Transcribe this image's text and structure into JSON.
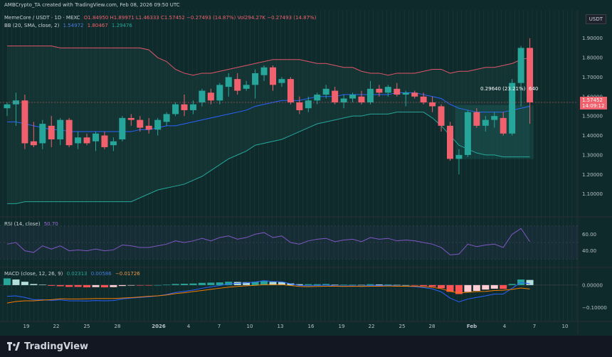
{
  "header": {
    "watermark": "AMBCrypto_TA created with TradingView.com, Feb 08, 2026 09:50 UTC",
    "symbol": "MemeCore / USDT · 1D · MEXC",
    "ohlc": "O1.84950 H1.89971 L1.46333 C1.57452 −0.27493 (14.87%) Vol294.27K −0.27493 (14.87%)",
    "bb_label": "BB (20, SMA, close, 2)",
    "bb_values": [
      "1.54972",
      "1.80467",
      "1.29476"
    ],
    "rsi_label": "RSI (14, close)",
    "rsi_value": "50.70",
    "macd_label": "MACD (close, 12, 26, 9)",
    "macd_values": [
      "0.02313",
      "0.00586",
      "−0.01726"
    ]
  },
  "currency_tag": "USDT",
  "price_tag": {
    "price": "1.57452",
    "countdown": "14:09:12"
  },
  "measure_label": "0.29640 (23.21%)",
  "measure_suffix": "640",
  "price_axis": [
    "1.90000",
    "1.80000",
    "1.70000",
    "1.60000",
    "1.50000",
    "1.40000",
    "1.30000",
    "1.20000",
    "1.10000"
  ],
  "rsi_axis": [
    "60.00",
    "40.00"
  ],
  "macd_axis": [
    "0.00000",
    "−0.10000"
  ],
  "time_axis": [
    "19",
    "22",
    "25",
    "28",
    "2026",
    "4",
    "7",
    "10",
    "13",
    "16",
    "19",
    "22",
    "25",
    "28",
    "Feb",
    "4",
    "7",
    "10"
  ],
  "footer_brand": "TradingView",
  "colors": {
    "up": "#26a69a",
    "down": "#f0616d",
    "bb_upper": "#e0556a",
    "bb_basis": "#2962ff",
    "bb_lower": "#26a69a",
    "rsi": "#7e57c2",
    "macd": "#2962ff",
    "signal": "#f57c00"
  },
  "candles": [
    [
      1.54,
      1.57,
      1.5,
      1.56
    ],
    [
      1.56,
      1.62,
      1.45,
      1.58
    ],
    [
      1.58,
      1.61,
      1.33,
      1.36
    ],
    [
      1.37,
      1.47,
      1.34,
      1.35
    ],
    [
      1.36,
      1.48,
      1.33,
      1.46
    ],
    [
      1.45,
      1.5,
      1.34,
      1.38
    ],
    [
      1.38,
      1.49,
      1.35,
      1.48
    ],
    [
      1.48,
      1.49,
      1.34,
      1.35
    ],
    [
      1.36,
      1.42,
      1.33,
      1.39
    ],
    [
      1.39,
      1.41,
      1.35,
      1.36
    ],
    [
      1.37,
      1.42,
      1.32,
      1.41
    ],
    [
      1.4,
      1.42,
      1.33,
      1.34
    ],
    [
      1.35,
      1.39,
      1.32,
      1.37
    ],
    [
      1.38,
      1.5,
      1.37,
      1.49
    ],
    [
      1.49,
      1.51,
      1.45,
      1.48
    ],
    [
      1.48,
      1.5,
      1.42,
      1.44
    ],
    [
      1.45,
      1.49,
      1.41,
      1.43
    ],
    [
      1.43,
      1.49,
      1.4,
      1.48
    ],
    [
      1.47,
      1.52,
      1.45,
      1.51
    ],
    [
      1.51,
      1.57,
      1.5,
      1.56
    ],
    [
      1.56,
      1.61,
      1.5,
      1.53
    ],
    [
      1.53,
      1.58,
      1.51,
      1.56
    ],
    [
      1.57,
      1.64,
      1.55,
      1.63
    ],
    [
      1.62,
      1.64,
      1.56,
      1.58
    ],
    [
      1.58,
      1.67,
      1.56,
      1.66
    ],
    [
      1.65,
      1.72,
      1.6,
      1.7
    ],
    [
      1.69,
      1.72,
      1.61,
      1.63
    ],
    [
      1.64,
      1.68,
      1.63,
      1.66
    ],
    [
      1.66,
      1.74,
      1.59,
      1.72
    ],
    [
      1.71,
      1.76,
      1.68,
      1.75
    ],
    [
      1.75,
      1.76,
      1.63,
      1.66
    ],
    [
      1.67,
      1.7,
      1.65,
      1.69
    ],
    [
      1.69,
      1.7,
      1.56,
      1.57
    ],
    [
      1.57,
      1.6,
      1.51,
      1.53
    ],
    [
      1.54,
      1.6,
      1.52,
      1.58
    ],
    [
      1.58,
      1.62,
      1.56,
      1.61
    ],
    [
      1.61,
      1.66,
      1.59,
      1.64
    ],
    [
      1.63,
      1.65,
      1.56,
      1.57
    ],
    [
      1.57,
      1.61,
      1.54,
      1.59
    ],
    [
      1.59,
      1.62,
      1.57,
      1.61
    ],
    [
      1.6,
      1.63,
      1.56,
      1.57
    ],
    [
      1.57,
      1.68,
      1.56,
      1.64
    ],
    [
      1.64,
      1.66,
      1.6,
      1.62
    ],
    [
      1.62,
      1.66,
      1.6,
      1.65
    ],
    [
      1.64,
      1.67,
      1.6,
      1.61
    ],
    [
      1.61,
      1.63,
      1.55,
      1.62
    ],
    [
      1.62,
      1.63,
      1.59,
      1.6
    ],
    [
      1.6,
      1.62,
      1.56,
      1.57
    ],
    [
      1.57,
      1.6,
      1.52,
      1.55
    ],
    [
      1.55,
      1.56,
      1.42,
      1.45
    ],
    [
      1.45,
      1.47,
      1.27,
      1.28
    ],
    [
      1.28,
      1.33,
      1.2,
      1.3
    ],
    [
      1.3,
      1.53,
      1.29,
      1.52
    ],
    [
      1.52,
      1.54,
      1.44,
      1.45
    ],
    [
      1.45,
      1.5,
      1.42,
      1.48
    ],
    [
      1.48,
      1.52,
      1.44,
      1.5
    ],
    [
      1.49,
      1.52,
      1.4,
      1.41
    ],
    [
      1.41,
      1.69,
      1.4,
      1.67
    ],
    [
      1.67,
      1.86,
      1.55,
      1.85
    ],
    [
      1.85,
      1.9,
      1.46,
      1.57
    ]
  ],
  "rsi": [
    48,
    50,
    40,
    38,
    46,
    42,
    46,
    40,
    41,
    40,
    42,
    40,
    41,
    47,
    46,
    44,
    44,
    46,
    48,
    52,
    50,
    52,
    55,
    52,
    56,
    58,
    54,
    56,
    60,
    62,
    56,
    58,
    50,
    48,
    52,
    54,
    55,
    51,
    53,
    54,
    51,
    56,
    54,
    55,
    52,
    53,
    52,
    50,
    48,
    44,
    35,
    36,
    48,
    45,
    47,
    48,
    44,
    60,
    67,
    51
  ],
  "macd_hist": [
    0.03,
    0.025,
    0.015,
    0.005,
    0.002,
    -0.003,
    -0.005,
    -0.008,
    -0.008,
    -0.01,
    -0.009,
    -0.01,
    -0.009,
    -0.004,
    -0.002,
    -0.002,
    -0.002,
    0.0,
    0.002,
    0.005,
    0.006,
    0.007,
    0.01,
    0.011,
    0.012,
    0.015,
    0.014,
    0.013,
    0.015,
    0.018,
    0.014,
    0.013,
    0.008,
    0.004,
    0.004,
    0.004,
    0.005,
    0.002,
    0.002,
    0.002,
    0.001,
    0.004,
    0.003,
    0.003,
    0.001,
    0.0,
    -0.002,
    -0.004,
    -0.007,
    -0.014,
    -0.03,
    -0.04,
    -0.03,
    -0.026,
    -0.02,
    -0.016,
    -0.017,
    0.005,
    0.025,
    0.023
  ],
  "macd_line": [
    -0.05,
    -0.048,
    -0.055,
    -0.065,
    -0.065,
    -0.068,
    -0.066,
    -0.07,
    -0.07,
    -0.071,
    -0.069,
    -0.07,
    -0.069,
    -0.062,
    -0.058,
    -0.055,
    -0.052,
    -0.048,
    -0.042,
    -0.033,
    -0.028,
    -0.022,
    -0.014,
    -0.008,
    -0.002,
    0.006,
    0.008,
    0.01,
    0.014,
    0.02,
    0.016,
    0.015,
    0.006,
    -0.002,
    -0.003,
    -0.002,
    0.0,
    -0.003,
    -0.004,
    -0.003,
    -0.005,
    -0.001,
    -0.002,
    -0.001,
    -0.004,
    -0.005,
    -0.007,
    -0.011,
    -0.017,
    -0.03,
    -0.058,
    -0.075,
    -0.062,
    -0.055,
    -0.048,
    -0.04,
    -0.04,
    -0.014,
    0.012,
    0.0058
  ],
  "signal_line": [
    -0.08,
    -0.073,
    -0.07,
    -0.07,
    -0.067,
    -0.065,
    -0.061,
    -0.062,
    -0.062,
    -0.061,
    -0.06,
    -0.06,
    -0.06,
    -0.058,
    -0.056,
    -0.053,
    -0.05,
    -0.048,
    -0.044,
    -0.038,
    -0.034,
    -0.029,
    -0.024,
    -0.019,
    -0.014,
    -0.009,
    -0.006,
    -0.003,
    -0.001,
    0.002,
    0.002,
    0.002,
    -0.002,
    -0.006,
    -0.007,
    -0.006,
    -0.005,
    -0.005,
    -0.006,
    -0.005,
    -0.006,
    -0.005,
    -0.005,
    -0.004,
    -0.005,
    -0.005,
    -0.005,
    -0.007,
    -0.01,
    -0.016,
    -0.028,
    -0.035,
    -0.032,
    -0.029,
    -0.028,
    -0.024,
    -0.023,
    -0.019,
    -0.013,
    -0.0173
  ],
  "bb_upper": [
    1.86,
    1.86,
    1.86,
    1.86,
    1.86,
    1.86,
    1.85,
    1.85,
    1.85,
    1.85,
    1.85,
    1.85,
    1.85,
    1.85,
    1.85,
    1.85,
    1.84,
    1.8,
    1.78,
    1.74,
    1.72,
    1.71,
    1.72,
    1.72,
    1.73,
    1.74,
    1.75,
    1.76,
    1.77,
    1.78,
    1.79,
    1.79,
    1.79,
    1.79,
    1.78,
    1.77,
    1.77,
    1.76,
    1.75,
    1.75,
    1.73,
    1.72,
    1.72,
    1.71,
    1.72,
    1.72,
    1.72,
    1.73,
    1.74,
    1.74,
    1.72,
    1.73,
    1.73,
    1.74,
    1.75,
    1.75,
    1.76,
    1.77,
    1.79,
    1.8
  ],
  "bb_basis": [
    1.47,
    1.47,
    1.46,
    1.45,
    1.44,
    1.43,
    1.43,
    1.42,
    1.42,
    1.42,
    1.42,
    1.42,
    1.42,
    1.42,
    1.42,
    1.43,
    1.43,
    1.44,
    1.45,
    1.45,
    1.46,
    1.47,
    1.48,
    1.49,
    1.5,
    1.51,
    1.52,
    1.53,
    1.55,
    1.56,
    1.57,
    1.58,
    1.58,
    1.58,
    1.59,
    1.6,
    1.6,
    1.6,
    1.61,
    1.61,
    1.61,
    1.61,
    1.61,
    1.61,
    1.62,
    1.62,
    1.62,
    1.61,
    1.6,
    1.59,
    1.56,
    1.54,
    1.53,
    1.52,
    1.52,
    1.52,
    1.52,
    1.53,
    1.54,
    1.55
  ],
  "bb_lower": [
    1.05,
    1.05,
    1.06,
    1.06,
    1.06,
    1.06,
    1.06,
    1.06,
    1.06,
    1.06,
    1.06,
    1.06,
    1.06,
    1.06,
    1.06,
    1.08,
    1.1,
    1.12,
    1.13,
    1.14,
    1.15,
    1.17,
    1.19,
    1.22,
    1.25,
    1.28,
    1.3,
    1.32,
    1.35,
    1.36,
    1.37,
    1.38,
    1.4,
    1.42,
    1.44,
    1.46,
    1.47,
    1.48,
    1.49,
    1.5,
    1.5,
    1.51,
    1.51,
    1.51,
    1.52,
    1.52,
    1.52,
    1.52,
    1.49,
    1.45,
    1.4,
    1.35,
    1.33,
    1.31,
    1.3,
    1.3,
    1.29,
    1.29,
    1.29,
    1.29
  ]
}
